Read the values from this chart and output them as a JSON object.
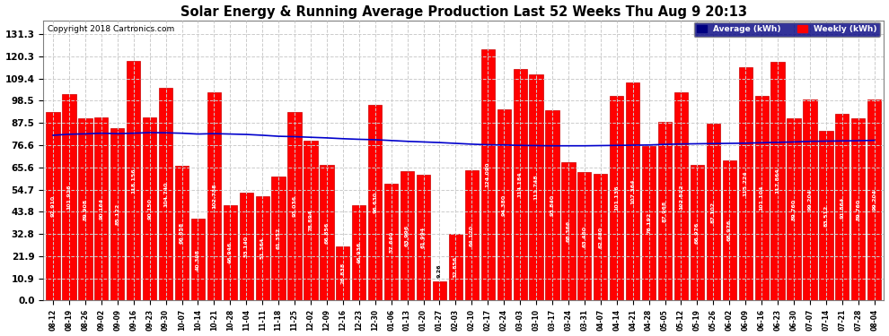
{
  "title": "Solar Energy & Running Average Production Last 52 Weeks Thu Aug 9 20:13",
  "copyright": "Copyright 2018 Cartronics.com",
  "legend_avg": "Average (kWh)",
  "legend_weekly": "Weekly (kWh)",
  "bar_color": "#ff0000",
  "bar_edge_color": "#cc0000",
  "avg_line_color": "#0000cc",
  "background_color": "#ffffff",
  "plot_bg_color": "#ffffff",
  "grid_color": "#cccccc",
  "yticks": [
    0.0,
    10.9,
    21.9,
    32.8,
    43.8,
    54.7,
    65.6,
    76.6,
    87.5,
    98.5,
    109.4,
    120.3,
    131.3
  ],
  "xlabels": [
    "08-12",
    "08-19",
    "08-26",
    "09-02",
    "09-09",
    "09-16",
    "09-23",
    "09-30",
    "10-07",
    "10-14",
    "10-21",
    "10-28",
    "11-04",
    "11-11",
    "11-18",
    "11-25",
    "12-02",
    "12-09",
    "12-16",
    "12-23",
    "12-30",
    "01-06",
    "01-13",
    "01-20",
    "01-27",
    "02-03",
    "02-10",
    "02-17",
    "02-24",
    "03-03",
    "03-10",
    "03-17",
    "03-24",
    "03-31",
    "04-07",
    "04-14",
    "04-21",
    "04-28",
    "05-05",
    "05-12",
    "05-19",
    "05-26",
    "06-02",
    "06-09",
    "06-16",
    "06-23",
    "06-30",
    "07-07",
    "07-14",
    "07-21",
    "07-28",
    "08-04"
  ],
  "bar_values": [
    92.91,
    101.916,
    89.908,
    90.164,
    85.122,
    118.156,
    90.15,
    104.74,
    66.658,
    40.308,
    102.738,
    46.946,
    53.14,
    51.364,
    61.352,
    93.036,
    78.894,
    66.856,
    26.838,
    46.936,
    96.63,
    57.64,
    63.996,
    61.994,
    9.26,
    32.856,
    64.12,
    124.09,
    94.38,
    114.184,
    111.748,
    93.84,
    68.366,
    63.46,
    62.68,
    101.136,
    107.364,
    76.192,
    87.968,
    102.512,
    66.976,
    87.102,
    68.976,
    115.224,
    101.104,
    117.864,
    89.76,
    99.204,
    83.512,
    91.864,
    89.76,
    99.204
  ],
  "avg_values": [
    81.5,
    82.0,
    82.2,
    82.5,
    82.3,
    82.5,
    82.8,
    82.7,
    82.5,
    82.1,
    82.3,
    82.1,
    81.9,
    81.5,
    81.0,
    80.8,
    80.5,
    80.2,
    79.8,
    79.5,
    79.3,
    78.9,
    78.5,
    78.2,
    77.9,
    77.5,
    77.1,
    76.8,
    76.7,
    76.5,
    76.4,
    76.3,
    76.3,
    76.3,
    76.4,
    76.5,
    76.6,
    76.7,
    77.0,
    77.2,
    77.3,
    77.4,
    77.5,
    77.6,
    77.8,
    78.0,
    78.2,
    78.5,
    78.6,
    78.7,
    78.8,
    79.0
  ],
  "bar_labels": [
    "92.910",
    "101.916",
    "89.908",
    "90.164",
    "85.122",
    "118.156",
    "90.150",
    "104.740",
    "66.658",
    "40.308",
    "102.738",
    "46.946",
    "53.140",
    "51.364",
    "61.352",
    "93.036",
    "78.894",
    "66.856",
    "26.838",
    "46.936",
    "96.630",
    "57.640",
    "63.996",
    "61.994",
    "9.26",
    "32.856",
    "64.120",
    "124.090",
    "94.380",
    "114.184",
    "111.748",
    "93.840",
    "68.366",
    "63.460",
    "62.680",
    "101.136",
    "107.364",
    "76.192",
    "87.968",
    "102.512",
    "66.976",
    "87.102",
    "68.976",
    "115.224",
    "101.104",
    "117.864",
    "89.760",
    "99.204",
    "83.512",
    "91.864",
    "89.760",
    "99.204"
  ],
  "ylim": [
    0.0,
    138.0
  ],
  "figsize": [
    9.9,
    3.75
  ],
  "dpi": 100
}
